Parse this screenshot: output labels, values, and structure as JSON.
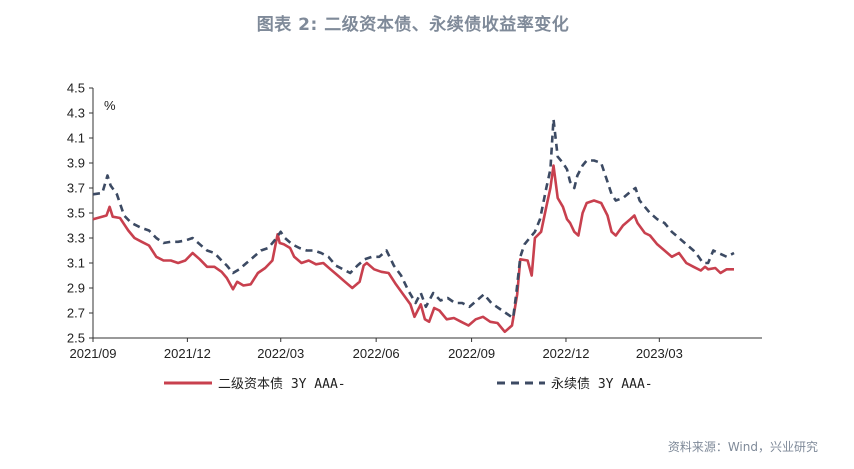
{
  "title": "图表 2:  二级资本债、永续债收益率变化",
  "source": "资料来源：Wind，兴业研究",
  "chart_data": {
    "type": "line",
    "unit_label": "%",
    "ylim": [
      2.5,
      4.5
    ],
    "yticks": [
      "4.5",
      "4.3",
      "4.1",
      "3.9",
      "3.7",
      "3.5",
      "3.3",
      "3.1",
      "2.9",
      "2.7",
      "2.5"
    ],
    "xlim": [
      "2021-09-01",
      "2023-06-08"
    ],
    "xticks": [
      {
        "label": "2021/09",
        "date": "2021-09-01"
      },
      {
        "label": "2021/12",
        "date": "2021-12-01"
      },
      {
        "label": "2022/03",
        "date": "2022-03-01"
      },
      {
        "label": "2022/06",
        "date": "2022-06-01"
      },
      {
        "label": "2022/09",
        "date": "2022-09-01"
      },
      {
        "label": "2022/12",
        "date": "2022-12-01"
      },
      {
        "label": "2023/03",
        "date": "2023-03-01"
      }
    ],
    "legend_position": "bottom",
    "series": [
      {
        "name": "二级资本债  3Y AAA-",
        "color": "#c8404e",
        "style": "solid",
        "points": [
          [
            "2021-09-01",
            3.45
          ],
          [
            "2021-09-14",
            3.48
          ],
          [
            "2021-09-17",
            3.55
          ],
          [
            "2021-09-20",
            3.47
          ],
          [
            "2021-09-27",
            3.46
          ],
          [
            "2021-10-05",
            3.36
          ],
          [
            "2021-10-11",
            3.3
          ],
          [
            "2021-10-18",
            3.27
          ],
          [
            "2021-10-25",
            3.24
          ],
          [
            "2021-11-01",
            3.15
          ],
          [
            "2021-11-08",
            3.12
          ],
          [
            "2021-11-15",
            3.12
          ],
          [
            "2021-11-22",
            3.1
          ],
          [
            "2021-11-29",
            3.12
          ],
          [
            "2021-12-06",
            3.18
          ],
          [
            "2021-12-13",
            3.13
          ],
          [
            "2021-12-20",
            3.07
          ],
          [
            "2021-12-27",
            3.07
          ],
          [
            "2022-01-03",
            3.03
          ],
          [
            "2022-01-08",
            2.98
          ],
          [
            "2022-01-14",
            2.89
          ],
          [
            "2022-01-18",
            2.95
          ],
          [
            "2022-01-24",
            2.92
          ],
          [
            "2022-01-31",
            2.93
          ],
          [
            "2022-02-07",
            3.02
          ],
          [
            "2022-02-14",
            3.06
          ],
          [
            "2022-02-21",
            3.12
          ],
          [
            "2022-02-26",
            3.33
          ],
          [
            "2022-02-28",
            3.26
          ],
          [
            "2022-03-04",
            3.25
          ],
          [
            "2022-03-10",
            3.22
          ],
          [
            "2022-03-14",
            3.15
          ],
          [
            "2022-03-21",
            3.1
          ],
          [
            "2022-03-28",
            3.12
          ],
          [
            "2022-04-04",
            3.09
          ],
          [
            "2022-04-11",
            3.1
          ],
          [
            "2022-04-18",
            3.05
          ],
          [
            "2022-04-25",
            3.0
          ],
          [
            "2022-05-02",
            2.95
          ],
          [
            "2022-05-09",
            2.9
          ],
          [
            "2022-05-16",
            2.95
          ],
          [
            "2022-05-20",
            3.08
          ],
          [
            "2022-05-23",
            3.1
          ],
          [
            "2022-05-30",
            3.05
          ],
          [
            "2022-06-06",
            3.03
          ],
          [
            "2022-06-13",
            3.02
          ],
          [
            "2022-06-20",
            2.93
          ],
          [
            "2022-06-27",
            2.85
          ],
          [
            "2022-07-04",
            2.77
          ],
          [
            "2022-07-08",
            2.67
          ],
          [
            "2022-07-14",
            2.77
          ],
          [
            "2022-07-18",
            2.65
          ],
          [
            "2022-07-22",
            2.63
          ],
          [
            "2022-07-27",
            2.74
          ],
          [
            "2022-08-01",
            2.72
          ],
          [
            "2022-08-08",
            2.65
          ],
          [
            "2022-08-15",
            2.66
          ],
          [
            "2022-08-22",
            2.63
          ],
          [
            "2022-08-29",
            2.6
          ],
          [
            "2022-09-05",
            2.65
          ],
          [
            "2022-09-12",
            2.67
          ],
          [
            "2022-09-19",
            2.63
          ],
          [
            "2022-09-26",
            2.62
          ],
          [
            "2022-10-03",
            2.55
          ],
          [
            "2022-10-10",
            2.6
          ],
          [
            "2022-10-15",
            2.85
          ],
          [
            "2022-10-18",
            3.13
          ],
          [
            "2022-10-25",
            3.12
          ],
          [
            "2022-10-29",
            3.0
          ],
          [
            "2022-11-01",
            3.3
          ],
          [
            "2022-11-07",
            3.35
          ],
          [
            "2022-11-12",
            3.55
          ],
          [
            "2022-11-16",
            3.7
          ],
          [
            "2022-11-19",
            3.88
          ],
          [
            "2022-11-23",
            3.62
          ],
          [
            "2022-11-28",
            3.55
          ],
          [
            "2022-12-02",
            3.45
          ],
          [
            "2022-12-05",
            3.42
          ],
          [
            "2022-12-09",
            3.35
          ],
          [
            "2022-12-13",
            3.32
          ],
          [
            "2022-12-17",
            3.5
          ],
          [
            "2022-12-21",
            3.58
          ],
          [
            "2022-12-28",
            3.6
          ],
          [
            "2023-01-04",
            3.58
          ],
          [
            "2023-01-10",
            3.48
          ],
          [
            "2023-01-14",
            3.35
          ],
          [
            "2023-01-18",
            3.32
          ],
          [
            "2023-01-25",
            3.4
          ],
          [
            "2023-02-01",
            3.45
          ],
          [
            "2023-02-05",
            3.48
          ],
          [
            "2023-02-08",
            3.42
          ],
          [
            "2023-02-15",
            3.34
          ],
          [
            "2023-02-20",
            3.32
          ],
          [
            "2023-02-27",
            3.25
          ],
          [
            "2023-03-06",
            3.2
          ],
          [
            "2023-03-13",
            3.15
          ],
          [
            "2023-03-20",
            3.18
          ],
          [
            "2023-03-27",
            3.1
          ],
          [
            "2023-04-03",
            3.07
          ],
          [
            "2023-04-10",
            3.04
          ],
          [
            "2023-04-14",
            3.07
          ],
          [
            "2023-04-17",
            3.05
          ],
          [
            "2023-04-24",
            3.06
          ],
          [
            "2023-04-29",
            3.02
          ],
          [
            "2023-05-05",
            3.05
          ],
          [
            "2023-05-12",
            3.05
          ]
        ]
      },
      {
        "name": "永续债  3Y AAA-",
        "color": "#3c4a63",
        "style": "dashed",
        "points": [
          [
            "2021-09-01",
            3.65
          ],
          [
            "2021-09-10",
            3.66
          ],
          [
            "2021-09-15",
            3.8
          ],
          [
            "2021-09-18",
            3.72
          ],
          [
            "2021-09-24",
            3.65
          ],
          [
            "2021-10-01",
            3.48
          ],
          [
            "2021-10-08",
            3.42
          ],
          [
            "2021-10-18",
            3.38
          ],
          [
            "2021-10-25",
            3.36
          ],
          [
            "2021-11-01",
            3.3
          ],
          [
            "2021-11-08",
            3.26
          ],
          [
            "2021-11-15",
            3.27
          ],
          [
            "2021-11-22",
            3.27
          ],
          [
            "2021-11-29",
            3.28
          ],
          [
            "2021-12-06",
            3.3
          ],
          [
            "2021-12-13",
            3.25
          ],
          [
            "2021-12-20",
            3.2
          ],
          [
            "2021-12-27",
            3.18
          ],
          [
            "2022-01-03",
            3.12
          ],
          [
            "2022-01-08",
            3.08
          ],
          [
            "2022-01-14",
            3.02
          ],
          [
            "2022-01-20",
            3.05
          ],
          [
            "2022-01-27",
            3.1
          ],
          [
            "2022-02-03",
            3.15
          ],
          [
            "2022-02-10",
            3.2
          ],
          [
            "2022-02-17",
            3.22
          ],
          [
            "2022-02-23",
            3.28
          ],
          [
            "2022-03-01",
            3.35
          ],
          [
            "2022-03-05",
            3.3
          ],
          [
            "2022-03-12",
            3.25
          ],
          [
            "2022-03-19",
            3.22
          ],
          [
            "2022-03-26",
            3.2
          ],
          [
            "2022-04-02",
            3.2
          ],
          [
            "2022-04-09",
            3.18
          ],
          [
            "2022-04-16",
            3.15
          ],
          [
            "2022-04-23",
            3.08
          ],
          [
            "2022-04-30",
            3.05
          ],
          [
            "2022-05-07",
            3.02
          ],
          [
            "2022-05-14",
            3.08
          ],
          [
            "2022-05-21",
            3.13
          ],
          [
            "2022-05-28",
            3.15
          ],
          [
            "2022-06-04",
            3.15
          ],
          [
            "2022-06-11",
            3.2
          ],
          [
            "2022-06-18",
            3.08
          ],
          [
            "2022-06-25",
            3.0
          ],
          [
            "2022-07-02",
            2.88
          ],
          [
            "2022-07-09",
            2.78
          ],
          [
            "2022-07-14",
            2.86
          ],
          [
            "2022-07-19",
            2.75
          ],
          [
            "2022-07-26",
            2.86
          ],
          [
            "2022-08-02",
            2.8
          ],
          [
            "2022-08-09",
            2.82
          ],
          [
            "2022-08-16",
            2.78
          ],
          [
            "2022-08-23",
            2.78
          ],
          [
            "2022-08-30",
            2.75
          ],
          [
            "2022-09-06",
            2.8
          ],
          [
            "2022-09-13",
            2.85
          ],
          [
            "2022-09-20",
            2.78
          ],
          [
            "2022-09-27",
            2.74
          ],
          [
            "2022-10-04",
            2.7
          ],
          [
            "2022-10-11",
            2.66
          ],
          [
            "2022-10-14",
            2.85
          ],
          [
            "2022-10-18",
            3.15
          ],
          [
            "2022-10-22",
            3.25
          ],
          [
            "2022-10-27",
            3.3
          ],
          [
            "2022-11-01",
            3.35
          ],
          [
            "2022-11-06",
            3.45
          ],
          [
            "2022-11-12",
            3.7
          ],
          [
            "2022-11-16",
            3.85
          ],
          [
            "2022-11-19",
            4.25
          ],
          [
            "2022-11-23",
            3.95
          ],
          [
            "2022-11-28",
            3.9
          ],
          [
            "2022-12-02",
            3.85
          ],
          [
            "2022-12-05",
            3.75
          ],
          [
            "2022-12-09",
            3.7
          ],
          [
            "2022-12-12",
            3.8
          ],
          [
            "2022-12-17",
            3.88
          ],
          [
            "2022-12-21",
            3.92
          ],
          [
            "2022-12-28",
            3.92
          ],
          [
            "2023-01-04",
            3.9
          ],
          [
            "2023-01-10",
            3.75
          ],
          [
            "2023-01-14",
            3.65
          ],
          [
            "2023-01-18",
            3.6
          ],
          [
            "2023-01-25",
            3.62
          ],
          [
            "2023-02-01",
            3.67
          ],
          [
            "2023-02-06",
            3.7
          ],
          [
            "2023-02-10",
            3.6
          ],
          [
            "2023-02-15",
            3.55
          ],
          [
            "2023-02-20",
            3.5
          ],
          [
            "2023-02-27",
            3.45
          ],
          [
            "2023-03-06",
            3.42
          ],
          [
            "2023-03-13",
            3.35
          ],
          [
            "2023-03-20",
            3.3
          ],
          [
            "2023-03-27",
            3.25
          ],
          [
            "2023-04-03",
            3.2
          ],
          [
            "2023-04-08",
            3.15
          ],
          [
            "2023-04-12",
            3.1
          ],
          [
            "2023-04-17",
            3.1
          ],
          [
            "2023-04-22",
            3.2
          ],
          [
            "2023-04-27",
            3.18
          ],
          [
            "2023-05-05",
            3.15
          ],
          [
            "2023-05-12",
            3.18
          ]
        ]
      }
    ]
  }
}
